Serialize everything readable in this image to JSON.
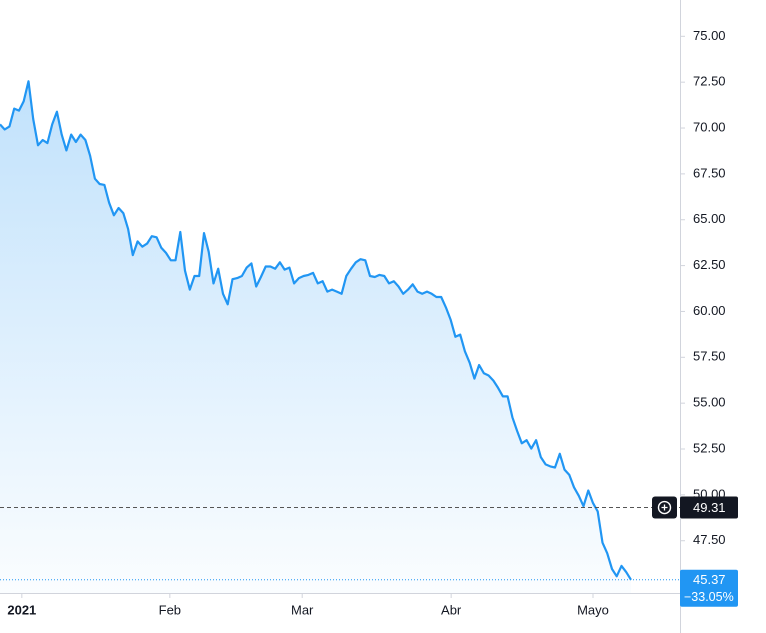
{
  "chart_data": {
    "type": "area",
    "color": "#2196f3",
    "values": [
      70.2,
      69.92,
      70.09,
      71.06,
      70.95,
      71.46,
      72.55,
      70.49,
      69.06,
      69.35,
      69.18,
      70.2,
      70.89,
      69.64,
      68.78,
      69.64,
      69.24,
      69.64,
      69.35,
      68.49,
      67.24,
      66.95,
      66.9,
      65.93,
      65.24,
      65.64,
      65.36,
      64.5,
      63.07,
      63.82,
      63.53,
      63.7,
      64.1,
      64.04,
      63.47,
      63.19,
      62.79,
      62.79,
      64.33,
      62.22,
      61.19,
      61.93,
      61.93,
      64.27,
      63.25,
      61.53,
      62.33,
      60.96,
      60.39,
      61.76,
      61.82,
      61.93,
      62.39,
      62.62,
      61.36,
      61.88,
      62.45,
      62.45,
      62.33,
      62.68,
      62.28,
      62.39,
      61.53,
      61.82,
      61.93,
      61.99,
      62.1,
      61.53,
      61.65,
      61.08,
      61.19,
      61.08,
      60.96,
      61.93,
      62.33,
      62.68,
      62.85,
      62.79,
      61.93,
      61.88,
      61.99,
      61.93,
      61.53,
      61.65,
      61.36,
      60.96,
      61.19,
      61.48,
      61.08,
      60.96,
      61.08,
      60.96,
      60.79,
      60.79,
      60.22,
      59.54,
      58.62,
      58.74,
      57.83,
      57.2,
      56.34,
      57.08,
      56.63,
      56.51,
      56.23,
      55.83,
      55.37,
      55.37,
      54.23,
      53.49,
      52.81,
      52.98,
      52.52,
      52.98,
      52.06,
      51.66,
      51.55,
      51.49,
      52.24,
      51.38,
      51.09,
      50.41,
      49.95,
      49.38,
      50.24,
      49.55,
      49.1,
      47.39,
      46.82,
      45.96,
      45.56,
      46.13,
      45.79,
      45.37
    ],
    "xticks": [
      {
        "value": 4.6,
        "label": "2021"
      },
      {
        "value": 35.8,
        "label": "Feb"
      },
      {
        "value": 63.7,
        "label": "Mar"
      },
      {
        "value": 95.1,
        "label": "Abr"
      },
      {
        "value": 125,
        "label": "Mayo"
      }
    ],
    "ylim": [
      44.65,
      76.98
    ],
    "yticks": [
      {
        "value": 47.5,
        "label": "47.50"
      },
      {
        "value": 50,
        "label": "50.00"
      },
      {
        "value": 52.5,
        "label": "52.50"
      },
      {
        "value": 55,
        "label": "55.00"
      },
      {
        "value": 57.5,
        "label": "57.50"
      },
      {
        "value": 60,
        "label": "60.00"
      },
      {
        "value": 62.5,
        "label": "62.50"
      },
      {
        "value": 65,
        "label": "65.00"
      },
      {
        "value": 67.5,
        "label": "67.50"
      },
      {
        "value": 70,
        "label": "70.00"
      },
      {
        "value": 72.5,
        "label": "72.50"
      },
      {
        "value": 75,
        "label": "75.00"
      }
    ],
    "reference_line": {
      "value": 49.31,
      "label": "49.31"
    },
    "last_price": {
      "value": 45.37,
      "label": "45.37"
    },
    "change": {
      "value": -33.05,
      "label": "−33.05%"
    }
  }
}
